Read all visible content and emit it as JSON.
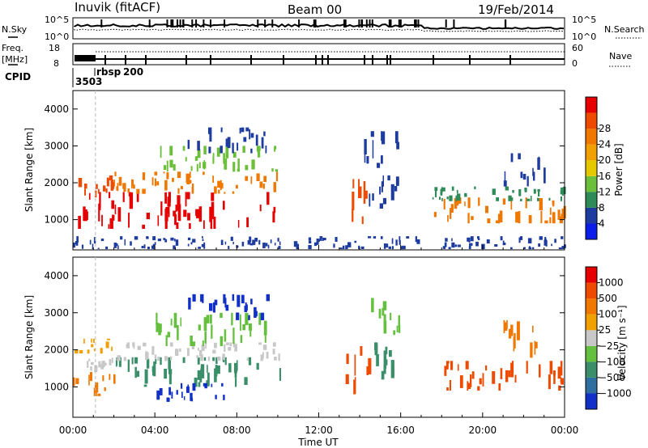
{
  "header": {
    "station": "Inuvik (fitACF)",
    "beam": "Beam 00",
    "date": "19/Feb/2014"
  },
  "summary": {
    "nsky_label": "N.Sky",
    "nsky_ticks": [
      "10^5",
      "10^0"
    ],
    "nsearch_label": "N.Search",
    "nsearch_ticks": [
      "10^5",
      "10^0"
    ],
    "freq_label": "Freq.",
    "freq_unit": "[MHz]",
    "freq_ticks": [
      "18",
      "8"
    ],
    "nave_label": "Nave",
    "nave_ticks": [
      "60",
      "0"
    ],
    "cpid_label": "CPID",
    "cpid_entries": [
      {
        "value": "3503",
        "hour": 0.0
      },
      {
        "value": "rbsp",
        "hour": 1.1
      },
      {
        "value": "200",
        "hour": 1.9
      }
    ]
  },
  "axes": {
    "ylabel": "Slant Range [km]",
    "xlabel": "Time UT",
    "y_ticks": [
      "1000",
      "2000",
      "3000",
      "4000"
    ],
    "x_ticks": [
      "00:00",
      "04:00",
      "08:00",
      "12:00",
      "16:00",
      "20:00",
      "00:00"
    ]
  },
  "power_scale": {
    "label": "Power [dB]",
    "ticks": [
      "4",
      "8",
      "12",
      "16",
      "20",
      "24",
      "28"
    ],
    "colors": [
      "#0a1ee8",
      "#1e3ca0",
      "#2e8b57",
      "#6bbf3a",
      "#e6c800",
      "#f0a000",
      "#f07800",
      "#ee4a00",
      "#e60000"
    ]
  },
  "velocity_scale": {
    "label": "Velocity [m s⁻¹]",
    "ticks": [
      "1000",
      "500",
      "100",
      "25",
      "−25",
      "−100",
      "−500",
      "−1000"
    ],
    "colors": [
      "#1030c8",
      "#2f6f9f",
      "#3a8f6a",
      "#66c040",
      "#c8c8c8",
      "#f0a000",
      "#f07800",
      "#ee4a00",
      "#e60000"
    ]
  },
  "chart_data": {
    "type": "heatmap",
    "x_range_hours": [
      0,
      24
    ],
    "y_range_km": [
      180,
      4500
    ],
    "power_blobs": [
      {
        "t0": 0.0,
        "t1": 10.2,
        "r0": 750,
        "r1": 1750,
        "color": "#e60000"
      },
      {
        "t0": 0.0,
        "t1": 2.0,
        "r0": 1500,
        "r1": 2200,
        "color": "#ee4a00"
      },
      {
        "t0": 2.0,
        "t1": 10.2,
        "r0": 1700,
        "r1": 2300,
        "color": "#f07800"
      },
      {
        "t0": 4.0,
        "t1": 10.0,
        "r0": 2300,
        "r1": 3000,
        "color": "#6bbf3a"
      },
      {
        "t0": 5.5,
        "t1": 9.5,
        "r0": 2800,
        "r1": 3500,
        "color": "#1e3ca0"
      },
      {
        "t0": 13.3,
        "t1": 14.6,
        "r0": 800,
        "r1": 2100,
        "color": "#ee4a00"
      },
      {
        "t0": 14.2,
        "t1": 16.0,
        "r0": 1300,
        "r1": 2200,
        "color": "#1e3ca0"
      },
      {
        "t0": 14.2,
        "t1": 16.0,
        "r0": 2400,
        "r1": 3400,
        "color": "#1e3ca0"
      },
      {
        "t0": 17.5,
        "t1": 24.0,
        "r0": 900,
        "r1": 1600,
        "color": "#f07800"
      },
      {
        "t0": 17.5,
        "t1": 24.0,
        "r0": 1500,
        "r1": 1900,
        "color": "#2e8b57"
      },
      {
        "t0": 21.0,
        "t1": 23.0,
        "r0": 1900,
        "r1": 2800,
        "color": "#1e3ca0"
      },
      {
        "t0": 0.0,
        "t1": 24.0,
        "r0": 200,
        "r1": 550,
        "color": "#1e3ca0"
      }
    ],
    "velocity_blobs": [
      {
        "t0": 0.0,
        "t1": 2.0,
        "r0": 750,
        "r1": 1400,
        "color": "#f07800"
      },
      {
        "t0": 0.0,
        "t1": 2.0,
        "r0": 1400,
        "r1": 1800,
        "color": "#c8c8c8"
      },
      {
        "t0": 0.0,
        "t1": 2.0,
        "r0": 1900,
        "r1": 2300,
        "color": "#f0a000"
      },
      {
        "t0": 2.0,
        "t1": 10.2,
        "r0": 1000,
        "r1": 1800,
        "color": "#3a8f6a"
      },
      {
        "t0": 2.0,
        "t1": 10.2,
        "r0": 1700,
        "r1": 2200,
        "color": "#c8c8c8"
      },
      {
        "t0": 4.0,
        "t1": 7.5,
        "r0": 600,
        "r1": 1100,
        "color": "#1030c8"
      },
      {
        "t0": 4.0,
        "t1": 10.0,
        "r0": 2100,
        "r1": 3000,
        "color": "#66c040"
      },
      {
        "t0": 5.5,
        "t1": 9.5,
        "r0": 2800,
        "r1": 3500,
        "color": "#1030c8"
      },
      {
        "t0": 13.3,
        "t1": 14.6,
        "r0": 800,
        "r1": 2100,
        "color": "#ee4a00"
      },
      {
        "t0": 14.2,
        "t1": 16.0,
        "r0": 1200,
        "r1": 2200,
        "color": "#3a8f6a"
      },
      {
        "t0": 14.2,
        "t1": 16.0,
        "r0": 2400,
        "r1": 3400,
        "color": "#66c040"
      },
      {
        "t0": 18.0,
        "t1": 24.0,
        "r0": 900,
        "r1": 1700,
        "color": "#ee4a00"
      },
      {
        "t0": 21.0,
        "t1": 23.0,
        "r0": 1700,
        "r1": 2800,
        "color": "#f07800"
      }
    ]
  }
}
